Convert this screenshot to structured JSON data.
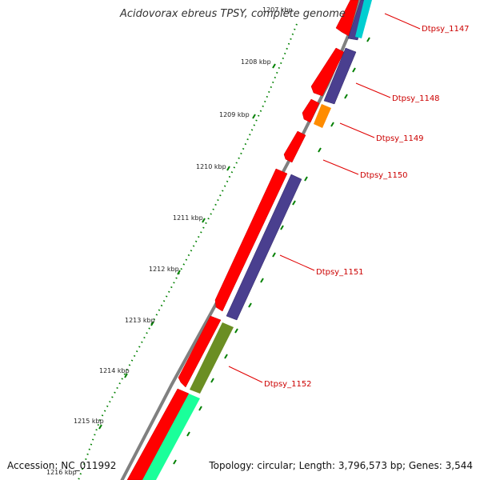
{
  "title": "Acidovorax ebreus TPSY, complete genome",
  "accession": "Accession: NC_011992",
  "stats": "Topology: circular; Length: 3,796,573 bp; Genes: 3,544",
  "colors": {
    "backbone": "#808080",
    "forward_cds": "#ff0000",
    "reverse_cds": "#4a3f8f",
    "orange_cds": "#ff8c00",
    "olive_cds": "#6b8e23",
    "green_cds": "#1aff9a",
    "cyan_cds": "#00ced1",
    "tick": "#008000",
    "label_line": "#e00000"
  },
  "ruler_labels": [
    "1207 kbp",
    "1208 kbp",
    "1209 kbp",
    "1210 kbp",
    "1211 kbp",
    "1212 kbp",
    "1213 kbp",
    "1214 kbp",
    "1215 kbp",
    "1216 kbp"
  ],
  "gene_labels": [
    "Dtpsy_1147",
    "Dtpsy_1148",
    "Dtpsy_1149",
    "Dtpsy_1150",
    "Dtpsy_1151",
    "Dtpsy_1152"
  ]
}
